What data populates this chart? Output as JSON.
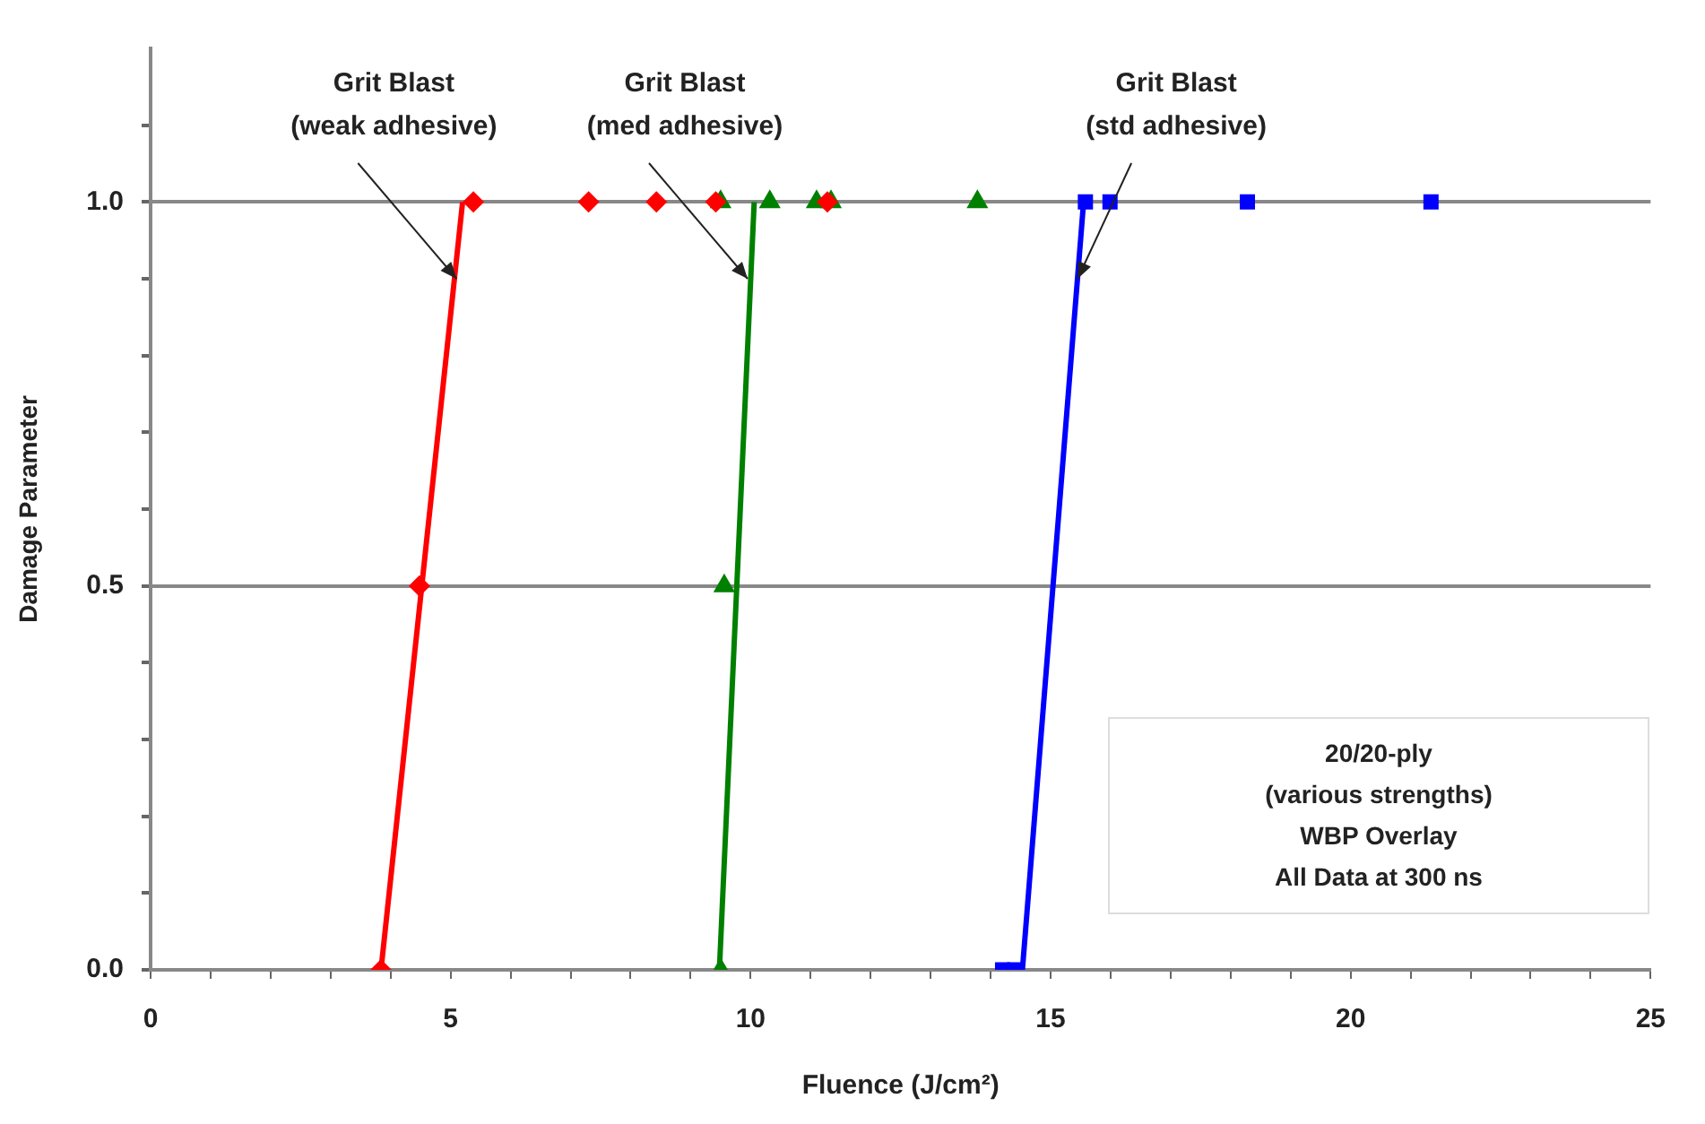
{
  "chart_data": {
    "type": "scatter",
    "xlabel": "Fluence (J/cm²)",
    "ylabel": "Damage Parameter",
    "xlim": [
      0,
      25
    ],
    "ylim": [
      0,
      1.2
    ],
    "xticks": [
      0,
      {
        "value": 1,
        "label": null
      },
      {
        "value": 2,
        "label": null
      },
      {
        "value": 3,
        "label": null
      },
      {
        "value": 4,
        "label": null
      },
      5,
      {
        "value": 6,
        "label": null
      },
      {
        "value": 7,
        "label": null
      },
      {
        "value": 8,
        "label": null
      },
      {
        "value": 9,
        "label": null
      },
      10,
      {
        "value": 11,
        "label": null
      },
      {
        "value": 12,
        "label": null
      },
      {
        "value": 13,
        "label": null
      },
      {
        "value": 14,
        "label": null
      },
      15,
      {
        "value": 16,
        "label": null
      },
      {
        "value": 17,
        "label": null
      },
      {
        "value": 18,
        "label": null
      },
      {
        "value": 19,
        "label": null
      },
      20,
      {
        "value": 21,
        "label": null
      },
      {
        "value": 22,
        "label": null
      },
      {
        "value": 23,
        "label": null
      },
      {
        "value": 24,
        "label": null
      },
      25
    ],
    "yticks": [
      {
        "value": 0,
        "label": "0.0"
      },
      {
        "value": 0.1,
        "label": null
      },
      {
        "value": 0.2,
        "label": null
      },
      {
        "value": 0.3,
        "label": null
      },
      {
        "value": 0.4,
        "label": null
      },
      {
        "value": 0.5,
        "label": "0.5"
      },
      {
        "value": 0.6,
        "label": null
      },
      {
        "value": 0.7,
        "label": null
      },
      {
        "value": 0.8,
        "label": null
      },
      {
        "value": 0.9,
        "label": null
      },
      {
        "value": 1,
        "label": "1.0"
      },
      {
        "value": 1.1,
        "label": null
      }
    ],
    "grid": "y",
    "legend": false,
    "series": [
      {
        "marker": "diamond",
        "color": "#ff0000",
        "x": [
          3.84,
          4.48,
          5.38,
          7.3,
          8.43,
          9.42,
          11.28
        ],
        "values": [
          0,
          0.5,
          1,
          1,
          1,
          1,
          1
        ]
      },
      {
        "marker": "triangle",
        "color": "#008000",
        "x": [
          9.5,
          9.56,
          9.5,
          10.32,
          11.1,
          11.34,
          13.78
        ],
        "values": [
          0,
          0.5,
          1,
          1,
          1,
          1,
          1
        ]
      },
      {
        "marker": "square",
        "color": "#0000ff",
        "x": [
          14.2,
          14.4,
          15.58,
          15.99,
          18.28,
          21.34
        ],
        "values": [
          0,
          0,
          1,
          1,
          1,
          1
        ]
      },
      {
        "type": "line",
        "marker": "none",
        "color": "#ff0000",
        "x": [
          3.84,
          5.2
        ],
        "values": [
          0,
          1
        ]
      },
      {
        "type": "line",
        "marker": "none",
        "color": "#008000",
        "x": [
          9.48,
          10.06
        ],
        "values": [
          0,
          1
        ]
      },
      {
        "type": "line",
        "marker": "none",
        "color": "#0000ff",
        "x": [
          14.53,
          15.55
        ],
        "values": [
          0,
          1
        ]
      }
    ],
    "annotations": [
      {
        "text": "Grit Blast\n(weak adhesive)",
        "x": 5.1,
        "y": 0.9
      },
      {
        "text": "Grit Blast\n(med adhesive)",
        "x": 9.95,
        "y": 0.9
      },
      {
        "text": "Grit Blast\n(std adhesive)",
        "x": 15.45,
        "y": 0.9
      },
      "20/20-ply\n(various strengths)\nWBP Overlay\nAll Data at 300 ns"
    ]
  }
}
